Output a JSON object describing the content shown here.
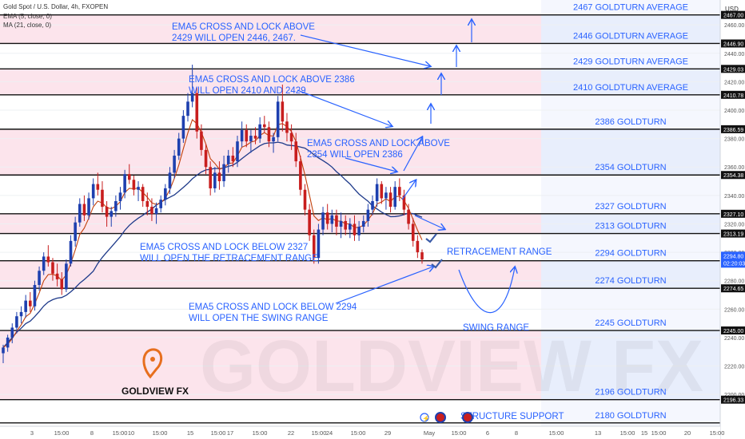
{
  "header": {
    "symbol": "Gold Spot / U.S. Dollar, 4h, FXOPEN",
    "indicator_ema": "EMA (5, close, 0)",
    "indicator_ma": "MA (21, close, 0)",
    "currency": "USD"
  },
  "brand": {
    "name": "GOLDVIEW FX",
    "watermark": "GOLDVIEW FX"
  },
  "colors": {
    "bull": "#1e40af",
    "bear": "#c81e1e",
    "annotation": "#2962ff",
    "zone_pink": "#fce4ec",
    "zone_blue": "#e8eefc",
    "price_tag": "#2962ff"
  },
  "chart_data": {
    "type": "candlestick",
    "ylim": [
      2181,
      2473
    ],
    "x_ticks": [
      "3",
      "15:00",
      "8",
      "15:00",
      "10",
      "15:00",
      "15",
      "15:00",
      "17",
      "15:00",
      "22",
      "15:00",
      "24",
      "15:00",
      "29",
      "May",
      "15:00",
      "6",
      "8",
      "15:00",
      "13",
      "15:00",
      "15",
      "15:00",
      "20",
      "15:00"
    ],
    "y_ticks": [
      2200,
      2220,
      2240,
      2260,
      2280,
      2300,
      2320,
      2340,
      2360,
      2380,
      2400,
      2420,
      2440,
      2460
    ],
    "levels": [
      {
        "label": "2467 GOLDTURN AVERAGE",
        "price": 2467.0,
        "tag": "2467.00"
      },
      {
        "label": "2446 GOLDTURN AVERAGE",
        "price": 2446.9,
        "tag": "2446.90"
      },
      {
        "label": "2429 GOLDTURN AVERAGE",
        "price": 2429.03,
        "tag": "2429.03"
      },
      {
        "label": "2410 GOLDTURN AVERAGE",
        "price": 2410.78,
        "tag": "2410.78"
      },
      {
        "label": "2386 GOLDTURN",
        "price": 2386.59,
        "tag": "2386.59"
      },
      {
        "label": "2354 GOLDTURN",
        "price": 2354.38,
        "tag": "2354.38"
      },
      {
        "label": "2327 GOLDTURN",
        "price": 2327.1,
        "tag": "2327.10"
      },
      {
        "label": "2313 GOLDTURN",
        "price": 2313.19,
        "tag": "2313.19"
      },
      {
        "label": "2294 GOLDTURN",
        "price": 2294.05,
        "tag": "2294.05"
      },
      {
        "label": "2274 GOLDTURN",
        "price": 2274.65,
        "tag": "2274.65"
      },
      {
        "label": "2245 GOLDTURN",
        "price": 2245.0,
        "tag": "2245.00"
      },
      {
        "label": "2196 GOLDTURN",
        "price": 2196.33,
        "tag": "2196.33"
      },
      {
        "label": "2180 GOLDTURN",
        "price": 2180.0,
        "tag": ""
      }
    ],
    "current_price": {
      "price": 2294.8,
      "tag": "2294.80",
      "countdown": "02:20:03"
    },
    "annotations": [
      "EMA5 CROSS AND LOCK ABOVE",
      "2429 WILL OPEN 2446, 2467.",
      "EMA5 CROSS AND LOCK ABOVE 2386",
      "WILL OPEN 2410 AND 2429",
      "EMA5 CROSS AND LOCK ABOVE",
      "2354 WILL OPEN 2386",
      "EMA5 CROSS AND LOCK BELOW 2327",
      "WILL  OPEN THE RETRACEMENT RANGE",
      "EMA5 CROSS AND LOCK BELOW 2294",
      "WILL  OPEN THE SWING RANGE",
      "RETRACEMENT RANGE",
      "SWING RANGE",
      "STRUCTURE SUPPORT"
    ],
    "candles": [
      [
        2229,
        2235,
        2222,
        2233
      ],
      [
        2233,
        2242,
        2230,
        2240
      ],
      [
        2240,
        2250,
        2236,
        2247
      ],
      [
        2247,
        2258,
        2243,
        2255
      ],
      [
        2255,
        2262,
        2250,
        2258
      ],
      [
        2258,
        2270,
        2254,
        2266
      ],
      [
        2266,
        2272,
        2258,
        2262
      ],
      [
        2262,
        2280,
        2259,
        2277
      ],
      [
        2277,
        2290,
        2273,
        2287
      ],
      [
        2287,
        2300,
        2284,
        2297
      ],
      [
        2297,
        2305,
        2290,
        2293
      ],
      [
        2293,
        2296,
        2280,
        2285
      ],
      [
        2285,
        2292,
        2276,
        2281
      ],
      [
        2281,
        2286,
        2270,
        2274
      ],
      [
        2274,
        2295,
        2272,
        2292
      ],
      [
        2292,
        2312,
        2290,
        2308
      ],
      [
        2308,
        2325,
        2304,
        2321
      ],
      [
        2321,
        2338,
        2318,
        2334
      ],
      [
        2334,
        2340,
        2322,
        2326
      ],
      [
        2326,
        2342,
        2323,
        2338
      ],
      [
        2338,
        2352,
        2333,
        2348
      ],
      [
        2348,
        2356,
        2340,
        2344
      ],
      [
        2344,
        2350,
        2328,
        2332
      ],
      [
        2332,
        2336,
        2318,
        2325
      ],
      [
        2325,
        2332,
        2318,
        2329
      ],
      [
        2329,
        2340,
        2325,
        2336
      ],
      [
        2336,
        2346,
        2330,
        2342
      ],
      [
        2342,
        2358,
        2338,
        2355
      ],
      [
        2355,
        2362,
        2348,
        2351
      ],
      [
        2351,
        2354,
        2340,
        2344
      ],
      [
        2344,
        2350,
        2336,
        2346
      ],
      [
        2346,
        2348,
        2332,
        2336
      ],
      [
        2336,
        2342,
        2326,
        2332
      ],
      [
        2332,
        2338,
        2322,
        2327
      ],
      [
        2327,
        2335,
        2320,
        2331
      ],
      [
        2331,
        2340,
        2328,
        2337
      ],
      [
        2337,
        2348,
        2333,
        2345
      ],
      [
        2345,
        2360,
        2341,
        2356
      ],
      [
        2356,
        2372,
        2352,
        2368
      ],
      [
        2368,
        2384,
        2365,
        2380
      ],
      [
        2380,
        2400,
        2377,
        2396
      ],
      [
        2396,
        2412,
        2392,
        2406
      ],
      [
        2406,
        2432,
        2402,
        2412
      ],
      [
        2412,
        2416,
        2380,
        2385
      ],
      [
        2385,
        2390,
        2368,
        2372
      ],
      [
        2372,
        2376,
        2355,
        2360
      ],
      [
        2360,
        2364,
        2340,
        2345
      ],
      [
        2345,
        2360,
        2342,
        2356
      ],
      [
        2356,
        2364,
        2344,
        2350
      ],
      [
        2350,
        2368,
        2346,
        2362
      ],
      [
        2362,
        2372,
        2356,
        2368
      ],
      [
        2368,
        2374,
        2360,
        2364
      ],
      [
        2364,
        2382,
        2360,
        2378
      ],
      [
        2378,
        2392,
        2374,
        2386
      ],
      [
        2386,
        2390,
        2374,
        2378
      ],
      [
        2378,
        2386,
        2370,
        2382
      ],
      [
        2382,
        2388,
        2376,
        2380
      ],
      [
        2380,
        2395,
        2377,
        2390
      ],
      [
        2390,
        2396,
        2384,
        2388
      ],
      [
        2388,
        2392,
        2374,
        2378
      ],
      [
        2378,
        2384,
        2370,
        2381
      ],
      [
        2381,
        2410,
        2378,
        2406
      ],
      [
        2406,
        2418,
        2385,
        2392
      ],
      [
        2392,
        2398,
        2378,
        2384
      ],
      [
        2384,
        2390,
        2372,
        2378
      ],
      [
        2378,
        2384,
        2360,
        2364
      ],
      [
        2364,
        2368,
        2340,
        2344
      ],
      [
        2344,
        2348,
        2326,
        2330
      ],
      [
        2330,
        2334,
        2308,
        2312
      ],
      [
        2312,
        2316,
        2292,
        2296
      ],
      [
        2296,
        2320,
        2292,
        2316
      ],
      [
        2316,
        2332,
        2312,
        2328
      ],
      [
        2328,
        2334,
        2316,
        2320
      ],
      [
        2320,
        2330,
        2314,
        2326
      ],
      [
        2326,
        2330,
        2312,
        2318
      ],
      [
        2318,
        2328,
        2310,
        2322
      ],
      [
        2322,
        2326,
        2312,
        2316
      ],
      [
        2316,
        2324,
        2310,
        2320
      ],
      [
        2320,
        2326,
        2308,
        2312
      ],
      [
        2312,
        2322,
        2308,
        2318
      ],
      [
        2318,
        2326,
        2314,
        2322
      ],
      [
        2322,
        2334,
        2318,
        2330
      ],
      [
        2330,
        2340,
        2326,
        2336
      ],
      [
        2336,
        2352,
        2332,
        2348
      ],
      [
        2348,
        2350,
        2334,
        2338
      ],
      [
        2338,
        2346,
        2330,
        2342
      ],
      [
        2342,
        2346,
        2328,
        2332
      ],
      [
        2332,
        2350,
        2330,
        2346
      ],
      [
        2346,
        2352,
        2336,
        2340
      ],
      [
        2340,
        2344,
        2326,
        2330
      ],
      [
        2330,
        2334,
        2316,
        2320
      ],
      [
        2320,
        2324,
        2304,
        2308
      ],
      [
        2308,
        2312,
        2296,
        2300
      ],
      [
        2300,
        2302,
        2292,
        2295
      ]
    ]
  }
}
